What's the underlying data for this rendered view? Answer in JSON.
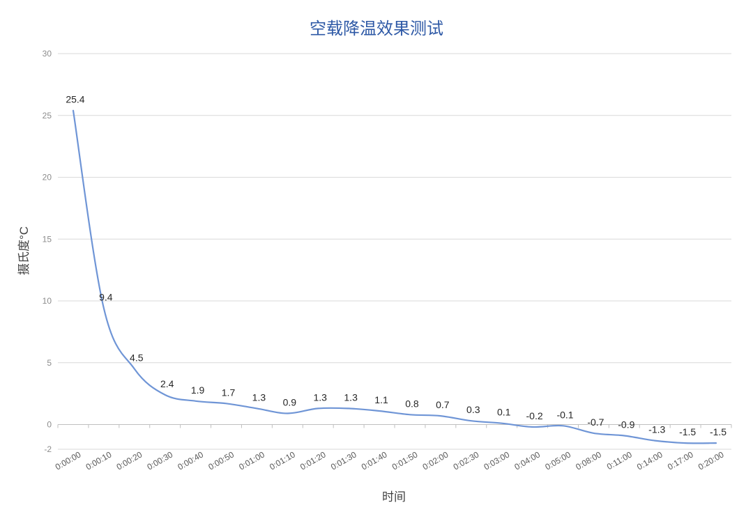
{
  "chart_data": {
    "type": "line",
    "title": "空载降温效果测试",
    "xlabel": "时间",
    "ylabel": "摄氏度°C",
    "categories": [
      "0:00:00",
      "0:00:10",
      "0:00:20",
      "0:00:30",
      "0:00:40",
      "0:00:50",
      "0:01:00",
      "0:01:10",
      "0:01:20",
      "0:01:30",
      "0:01:40",
      "0:01:50",
      "0:02:00",
      "0:02:30",
      "0:03:00",
      "0:04:00",
      "0:05:00",
      "0:08:00",
      "0:11:00",
      "0:14:00",
      "0:17:00",
      "0:20:00"
    ],
    "series": [
      {
        "values": [
          25.4,
          9.4,
          4.5,
          2.4,
          1.9,
          1.7,
          1.3,
          0.9,
          1.3,
          1.3,
          1.1,
          0.8,
          0.7,
          0.3,
          0.1,
          -0.2,
          -0.1,
          -0.7,
          -0.9,
          -1.3,
          -1.5,
          -1.5
        ],
        "data_labels": [
          "25.4",
          "9.4",
          "4.5",
          "2.4",
          "1.9",
          "1.7",
          "1.3",
          "0.9",
          "1.3",
          "1.3",
          "1.1",
          "0.8",
          "0.7",
          "0.3",
          "0.1",
          "-0.2",
          "-0.1",
          "-0.7",
          "-0.9",
          "-1.3",
          "-1.5",
          "-1.5"
        ]
      }
    ],
    "yticks": [
      30,
      25,
      20,
      15,
      10,
      5,
      0,
      -2
    ],
    "ylim": [
      -2,
      30
    ],
    "grid": true,
    "legend": "none",
    "colors": {
      "line": "#6f95d6",
      "title": "#2e59a6",
      "grid": "#d9d9d9"
    }
  }
}
